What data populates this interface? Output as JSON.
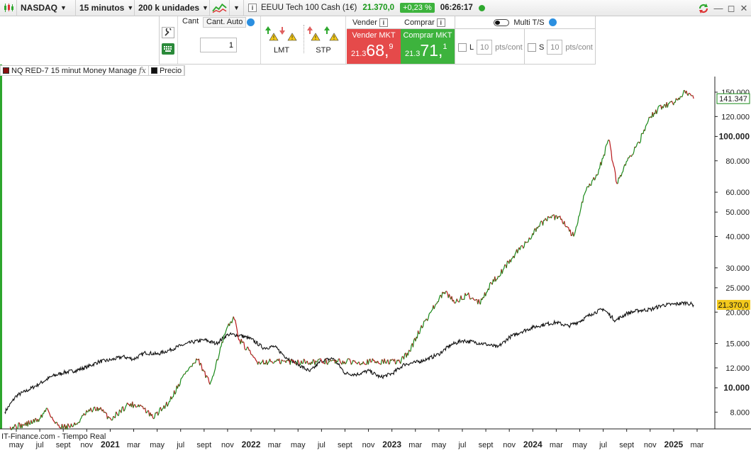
{
  "toolbar": {
    "market": "NASDAQ",
    "timeframe": "15 minutos",
    "units": "200 k unidades",
    "instrument": "EEUU Tech 100 Cash (1€)",
    "price": "21.370,0",
    "change_pct": "+0,23 %",
    "time": "06:26:17"
  },
  "order_panel": {
    "qty_label": "Cant",
    "qty_auto_label": "Cant. Auto",
    "qty_value": "1",
    "lmt_label": "LMT",
    "stp_label": "STP",
    "sell_label": "Vender",
    "buy_label": "Comprar",
    "sell_mkt_label": "Vender MKT",
    "buy_mkt_label": "Comprar MKT",
    "sell_price_small": "21.3",
    "sell_price_big": "68,",
    "sell_price_sup": "9",
    "buy_price_small": "21.3",
    "buy_price_big": "71,",
    "buy_price_sup": "1",
    "multi_ts_label": "Multi T/S",
    "long_label": "L",
    "short_label": "S",
    "pts_value": "10",
    "pts_unit": "pts/cont"
  },
  "legend": {
    "strategy": "NQ RED-7 15 minut Money Manage",
    "price_label": "Precio"
  },
  "source": "IT-Finance.com - Tiempo Real",
  "colors": {
    "up": "#1a8a1a",
    "down": "#b8181b",
    "price": "#111111",
    "price_tag": "#f3c91c",
    "equity_tag": "#1a8a1a"
  },
  "chart_data": {
    "type": "line",
    "y_scale": "log",
    "grid": false,
    "x_tick_labels": [
      "may",
      "jul",
      "sept",
      "nov",
      "2021",
      "mar",
      "may",
      "jul",
      "sept",
      "nov",
      "2022",
      "mar",
      "may",
      "jul",
      "sept",
      "nov",
      "2023",
      "mar",
      "may",
      "jul",
      "sept",
      "nov",
      "2024",
      "mar",
      "may",
      "jul",
      "sept",
      "nov",
      "2025",
      "mar"
    ],
    "y_tick_labels": [
      "150.000",
      "120.000",
      "100.000",
      "80.000",
      "60.000",
      "50.000",
      "40.000",
      "30.000",
      "25.000",
      "20.000",
      "15.000",
      "12.000",
      "10.000",
      "8.000"
    ],
    "y_ticks_bold": [
      "100.000",
      "10.000"
    ],
    "last_equity_label": "141.347",
    "last_price_label": "21.370,0",
    "series": [
      {
        "name": "NQ RED-7 15 minut Money Manage",
        "note_style": "equity",
        "x": [
          "2020-04-15",
          "2020-05-20",
          "2020-06-30",
          "2020-07-20",
          "2020-08-10",
          "2020-09-01",
          "2020-10-01",
          "2020-11-01",
          "2020-12-01",
          "2021-01-01",
          "2021-02-15",
          "2021-03-20",
          "2021-04-20",
          "2021-06-01",
          "2021-07-15",
          "2021-08-15",
          "2021-09-15",
          "2021-10-01",
          "2021-10-25",
          "2021-11-15",
          "2021-12-01",
          "2022-01-01",
          "2022-01-15",
          "2022-02-15",
          "2023-01-20",
          "2023-02-15",
          "2023-03-15",
          "2023-04-15",
          "2023-05-15",
          "2023-06-15",
          "2023-07-15",
          "2023-08-15",
          "2023-09-15",
          "2023-10-15",
          "2023-11-15",
          "2023-12-15",
          "2024-01-15",
          "2024-02-15",
          "2024-03-15",
          "2024-04-15",
          "2024-05-15",
          "2024-06-15",
          "2024-07-15",
          "2024-08-05",
          "2024-09-01",
          "2024-10-01",
          "2024-11-01",
          "2024-12-01",
          "2025-01-01",
          "2025-02-01",
          "2025-02-20"
        ],
        "values": [
          7000,
          7100,
          7500,
          8300,
          7200,
          7000,
          7100,
          8000,
          8300,
          7500,
          8600,
          8500,
          7600,
          8800,
          11600,
          12900,
          10300,
          12500,
          16500,
          19200,
          15500,
          13500,
          12700,
          12700,
          12700,
          14000,
          17200,
          20500,
          24000,
          22000,
          23500,
          21800,
          26000,
          29500,
          34000,
          38000,
          44000,
          48000,
          47000,
          40000,
          60000,
          70000,
          97000,
          65000,
          80000,
          95000,
          120000,
          132000,
          137000,
          152000,
          141347
        ]
      },
      {
        "name": "Precio",
        "x": [
          "2020-04-01",
          "2020-05-01",
          "2020-06-01",
          "2020-07-01",
          "2020-08-01",
          "2020-09-01",
          "2020-10-01",
          "2020-11-01",
          "2020-12-01",
          "2021-01-01",
          "2021-02-01",
          "2021-03-01",
          "2021-04-01",
          "2021-05-01",
          "2021-06-01",
          "2021-07-01",
          "2021-08-01",
          "2021-09-01",
          "2021-10-01",
          "2021-11-01",
          "2021-12-01",
          "2022-01-01",
          "2022-02-01",
          "2022-03-01",
          "2022-04-01",
          "2022-05-01",
          "2022-06-01",
          "2022-07-01",
          "2022-08-01",
          "2022-09-01",
          "2022-10-01",
          "2022-11-01",
          "2022-12-01",
          "2023-01-01",
          "2023-02-01",
          "2023-03-01",
          "2023-04-01",
          "2023-05-01",
          "2023-06-01",
          "2023-07-01",
          "2023-08-01",
          "2023-09-01",
          "2023-10-01",
          "2023-11-01",
          "2023-12-01",
          "2024-01-01",
          "2024-02-01",
          "2024-03-01",
          "2024-04-01",
          "2024-05-01",
          "2024-06-01",
          "2024-07-01",
          "2024-08-01",
          "2024-09-01",
          "2024-10-01",
          "2024-11-01",
          "2024-12-01",
          "2025-01-01",
          "2025-02-01",
          "2025-02-20"
        ],
        "values": [
          8000,
          9300,
          9800,
          10400,
          11100,
          11500,
          11700,
          12100,
          12700,
          12900,
          13300,
          13000,
          13800,
          13600,
          14100,
          14700,
          15200,
          15500,
          15000,
          16300,
          16200,
          15600,
          14400,
          14600,
          13200,
          12400,
          11600,
          12800,
          13100,
          11400,
          11300,
          11700,
          11000,
          11400,
          12400,
          12600,
          13000,
          13600,
          14800,
          15400,
          15200,
          14900,
          14500,
          15900,
          16700,
          17400,
          17900,
          18200,
          17600,
          18400,
          19700,
          20600,
          18500,
          19800,
          20300,
          20500,
          21300,
          21500,
          21800,
          21370
        ]
      }
    ]
  }
}
